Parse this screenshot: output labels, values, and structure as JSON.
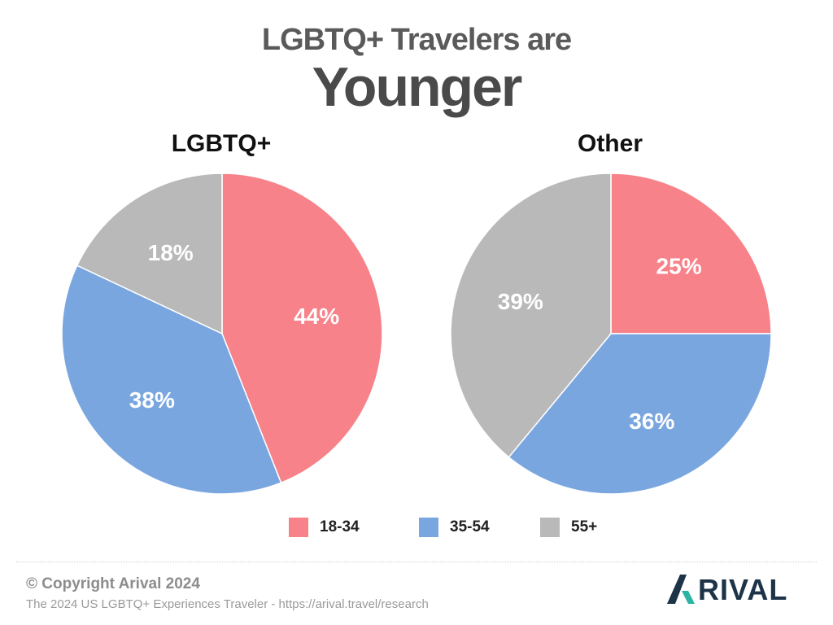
{
  "title": {
    "line1": "LGBTQ+ Travelers are",
    "line2": "Younger"
  },
  "chart_data": [
    {
      "type": "pie",
      "title": "LGBTQ+",
      "categories": [
        "18-34",
        "35-54",
        "55+"
      ],
      "values": [
        44,
        38,
        18
      ],
      "labels": [
        "44%",
        "38%",
        "18%"
      ]
    },
    {
      "type": "pie",
      "title": "Other",
      "categories": [
        "18-34",
        "35-54",
        "55+"
      ],
      "values": [
        25,
        36,
        39
      ],
      "labels": [
        "25%",
        "36%",
        "39%"
      ]
    }
  ],
  "legend": [
    {
      "label": "18-34",
      "color": "#f7828a"
    },
    {
      "label": "35-54",
      "color": "#7aa6e0"
    },
    {
      "label": "55+",
      "color": "#b9b9b9"
    }
  ],
  "footer": {
    "copyright": "© Copyright Arival 2024",
    "source": "The 2024 US LGBTQ+ Experiences Traveler - https://arival.travel/research",
    "logo_text": "RIVAL"
  }
}
